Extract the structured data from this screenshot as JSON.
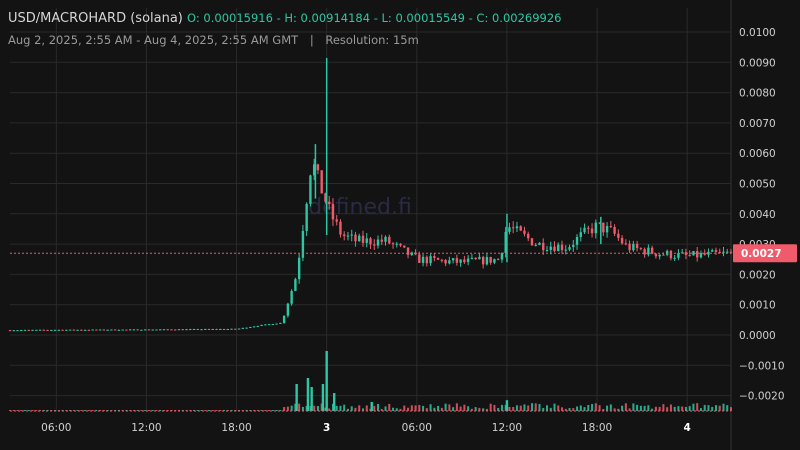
{
  "header": {
    "pair": "USD/MACROHARD (solana)",
    "ohlc": "O: 0.00015916 - H: 0.00914184 - L: 0.00015549 - C: 0.00269926",
    "range": "Aug 2, 2025, 2:55 AM - Aug 4, 2025, 2:55 AM GMT",
    "separator": "|",
    "resolution": "Resolution: 15m"
  },
  "watermark": "defined.fi",
  "colors": {
    "background": "#131313",
    "grid": "#2a2a2a",
    "up": "#2dc7a3",
    "down": "#ef5b6b",
    "axis_text": "#d0d0d0",
    "price_line": "#ef5b6b"
  },
  "chart_data": {
    "type": "candlestick",
    "interval": "15m",
    "x_ticks": [
      "06:00",
      "12:00",
      "18:00",
      "3",
      "06:00",
      "12:00",
      "18:00",
      "4"
    ],
    "y_ticks": [
      "0.0100",
      "0.0090",
      "0.0080",
      "0.0070",
      "0.0060",
      "0.0050",
      "0.0040",
      "0.0030",
      "0.0020",
      "0.0010",
      "0.0000",
      "−0.0010",
      "−0.0020"
    ],
    "ylim": [
      -0.0025,
      0.0104
    ],
    "last_price": 0.0027,
    "last_price_label": "0.0027",
    "price_path": [
      [
        "2025-08-02T02:55",
        0.00016
      ],
      [
        "2025-08-02T06:00",
        0.00017
      ],
      [
        "2025-08-02T12:00",
        0.00018
      ],
      [
        "2025-08-02T18:00",
        0.0002
      ],
      [
        "2025-08-02T20:00",
        0.00035
      ],
      [
        "2025-08-02T21:00",
        0.0004
      ],
      [
        "2025-08-02T22:00",
        0.002
      ],
      [
        "2025-08-02T23:00",
        0.0058
      ],
      [
        "2025-08-02T23:30",
        0.005
      ],
      [
        "2025-08-03T00:15",
        0.004
      ],
      [
        "2025-08-03T01:00",
        0.0033
      ],
      [
        "2025-08-03T02:00",
        0.0031
      ],
      [
        "2025-08-03T04:00",
        0.0031
      ],
      [
        "2025-08-03T06:00",
        0.0025
      ],
      [
        "2025-08-03T09:00",
        0.0024
      ],
      [
        "2025-08-03T11:30",
        0.0025
      ],
      [
        "2025-08-03T12:00",
        0.0036
      ],
      [
        "2025-08-03T14:00",
        0.003
      ],
      [
        "2025-08-03T16:00",
        0.0029
      ],
      [
        "2025-08-03T17:00",
        0.0033
      ],
      [
        "2025-08-03T18:00",
        0.0036
      ],
      [
        "2025-08-03T19:00",
        0.0034
      ],
      [
        "2025-08-03T20:00",
        0.0029
      ],
      [
        "2025-08-03T22:00",
        0.0027
      ],
      [
        "2025-08-04T00:00",
        0.0026
      ],
      [
        "2025-08-04T02:55",
        0.0027
      ]
    ],
    "wicks": [
      [
        "2025-08-03T00:00",
        0.00914184,
        0.0033
      ],
      [
        "2025-08-02T23:15",
        0.0063,
        0.0045
      ],
      [
        "2025-08-03T18:15",
        0.0039,
        0.003
      ],
      [
        "2025-08-03T12:00",
        0.004,
        0.0024
      ]
    ],
    "volume_spikes": [
      [
        "2025-08-02T22:00",
        0.45
      ],
      [
        "2025-08-02T22:45",
        0.55
      ],
      [
        "2025-08-02T23:45",
        0.45
      ],
      [
        "2025-08-03T00:00",
        1.0
      ],
      [
        "2025-08-03T00:30",
        0.3
      ],
      [
        "2025-08-03T12:00",
        0.18
      ],
      [
        "2025-08-03T03:00",
        0.15
      ],
      [
        "2025-08-02T23:00",
        0.4
      ]
    ]
  }
}
